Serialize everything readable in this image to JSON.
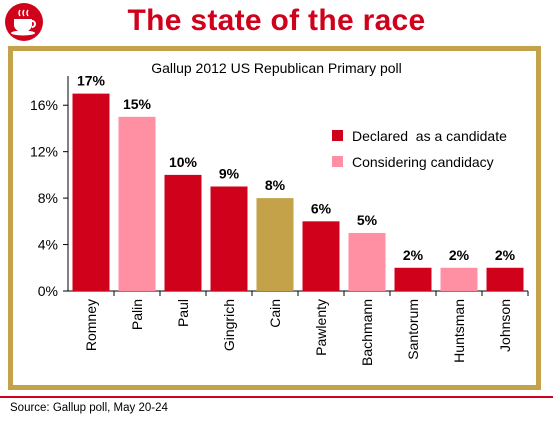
{
  "page": {
    "title": "The state of the race",
    "source": "Source: Gallup poll, May 20-24"
  },
  "colors": {
    "declared": "#d0021b",
    "considering": "#ff8fa3",
    "cain": "#c3a24a",
    "accent": "#d0021b"
  },
  "chart_data": {
    "type": "bar",
    "title": "Gallup 2012 US Republican Primary poll",
    "xlabel": "",
    "ylabel": "",
    "ylim": [
      0,
      18
    ],
    "yticks": [
      "0%",
      "4%",
      "8%",
      "12%",
      "16%"
    ],
    "ytick_values": [
      0,
      4,
      8,
      12,
      16
    ],
    "categories": [
      "Romney",
      "Palin",
      "Paul",
      "Gingrich",
      "Cain",
      "Pawlenty",
      "Bachmann",
      "Santorum",
      "Huntsman",
      "Johnson"
    ],
    "values": [
      17,
      15,
      10,
      9,
      8,
      6,
      5,
      2,
      2,
      2
    ],
    "value_labels": [
      "17%",
      "15%",
      "10%",
      "9%",
      "8%",
      "6%",
      "5%",
      "2%",
      "2%",
      "2%"
    ],
    "status": [
      "declared",
      "considering",
      "declared",
      "declared",
      "cain",
      "declared",
      "considering",
      "declared",
      "considering",
      "declared"
    ],
    "legend": [
      {
        "label": "Declared  as a candidate",
        "key": "declared"
      },
      {
        "label": "Considering candidacy",
        "key": "considering"
      }
    ],
    "legend_position": "top-right",
    "grid": false
  }
}
